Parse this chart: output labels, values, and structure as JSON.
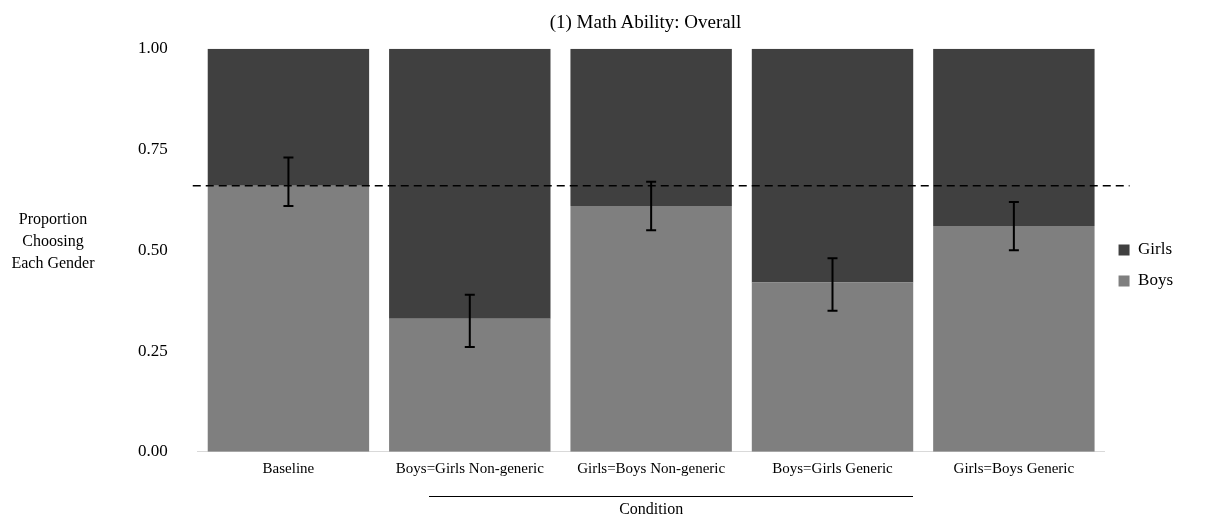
{
  "chart_data": {
    "type": "bar",
    "title": "(1) Math Ability: Overall",
    "xlabel": "Condition",
    "ylabel": "Proportion Choosing Each Gender",
    "categories": [
      "Baseline",
      "Boys=Girls Non-generic",
      "Girls=Boys Non-generic",
      "Boys=Girls Generic",
      "Girls=Boys Generic"
    ],
    "series": [
      {
        "name": "Boys",
        "color": "#7f7f7f",
        "values": [
          0.66,
          0.33,
          0.61,
          0.42,
          0.56
        ],
        "errors": [
          [
            0.61,
            0.73
          ],
          [
            0.26,
            0.39
          ],
          [
            0.55,
            0.67
          ],
          [
            0.35,
            0.48
          ],
          [
            0.5,
            0.62
          ]
        ]
      },
      {
        "name": "Girls",
        "color": "#404040",
        "values": [
          0.34,
          0.67,
          0.39,
          0.58,
          0.44
        ]
      }
    ],
    "stacked": true,
    "ylim": [
      0,
      1
    ],
    "yticks": [
      {
        "value": 0,
        "label": "0.00"
      },
      {
        "value": 0.25,
        "label": "0.25"
      },
      {
        "value": 0.5,
        "label": "0.50"
      },
      {
        "value": 0.75,
        "label": "0.75"
      },
      {
        "value": 1,
        "label": "1.00"
      }
    ],
    "ref_lines": [
      {
        "axis": "y",
        "value": 0.66,
        "line_style": "dashed",
        "color": "#000000"
      }
    ],
    "legend": "right",
    "grid": false
  }
}
